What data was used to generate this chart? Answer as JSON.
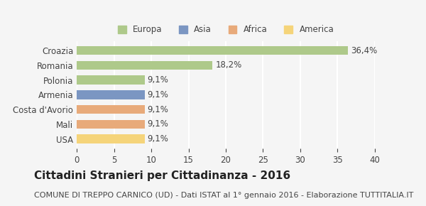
{
  "categories": [
    "Croazia",
    "Romania",
    "Polonia",
    "Armenia",
    "Costa d'Avorio",
    "Mali",
    "USA"
  ],
  "values": [
    36.4,
    18.2,
    9.1,
    9.1,
    9.1,
    9.1,
    9.1
  ],
  "labels": [
    "36,4%",
    "18,2%",
    "9,1%",
    "9,1%",
    "9,1%",
    "9,1%",
    "9,1%"
  ],
  "bar_colors": [
    "#aec98a",
    "#aec98a",
    "#aec98a",
    "#7b96c2",
    "#e8aa7a",
    "#e8aa7a",
    "#f5d47a"
  ],
  "legend_entries": [
    {
      "label": "Europa",
      "color": "#aec98a"
    },
    {
      "label": "Asia",
      "color": "#7b96c2"
    },
    {
      "label": "Africa",
      "color": "#e8aa7a"
    },
    {
      "label": "America",
      "color": "#f5d47a"
    }
  ],
  "xlim": [
    0,
    40
  ],
  "xticks": [
    0,
    5,
    10,
    15,
    20,
    25,
    30,
    35,
    40
  ],
  "title_bold": "Cittadini Stranieri per Cittadinanza - 2016",
  "subtitle": "COMUNE DI TREPPO CARNICO (UD) - Dati ISTAT al 1° gennaio 2016 - Elaborazione TUTTITALIA.IT",
  "background_color": "#f5f5f5",
  "grid_color": "#ffffff",
  "bar_height": 0.6,
  "title_fontsize": 11,
  "subtitle_fontsize": 8,
  "label_fontsize": 8.5,
  "tick_fontsize": 8.5
}
